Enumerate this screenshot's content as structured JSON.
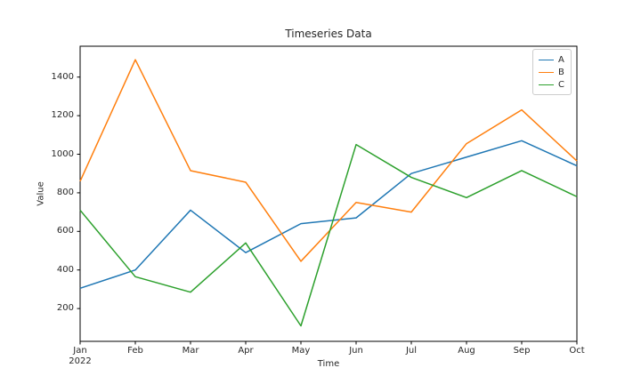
{
  "figure": {
    "title": "Timeseries Data",
    "xlabel": "Time",
    "ylabel": "Value"
  },
  "chart_data": {
    "type": "line",
    "title": "Timeseries Data",
    "xlabel": "Time",
    "ylabel": "Value",
    "x_tick_labels": [
      [
        "Jan",
        "2022"
      ],
      [
        "Feb"
      ],
      [
        "Mar"
      ],
      [
        "Apr"
      ],
      [
        "May"
      ],
      [
        "Jun"
      ],
      [
        "Jul"
      ],
      [
        "Aug"
      ],
      [
        "Sep"
      ],
      [
        "Oct"
      ]
    ],
    "y_ticks": [
      200,
      400,
      600,
      800,
      1000,
      1200,
      1400
    ],
    "ylim": [
      30,
      1560
    ],
    "grid": false,
    "legend_position": "upper right",
    "legend_border_color": "#cccccc",
    "axis_color": "#000000",
    "series": [
      {
        "name": "A",
        "color": "#1f77b4",
        "values": [
          305,
          400,
          710,
          490,
          640,
          670,
          900,
          985,
          1070,
          940
        ]
      },
      {
        "name": "B",
        "color": "#ff7f0e",
        "values": [
          860,
          1490,
          915,
          855,
          445,
          750,
          700,
          1055,
          1230,
          965
        ]
      },
      {
        "name": "C",
        "color": "#2ca02c",
        "values": [
          710,
          365,
          285,
          540,
          110,
          1050,
          880,
          775,
          915,
          780
        ]
      }
    ]
  }
}
